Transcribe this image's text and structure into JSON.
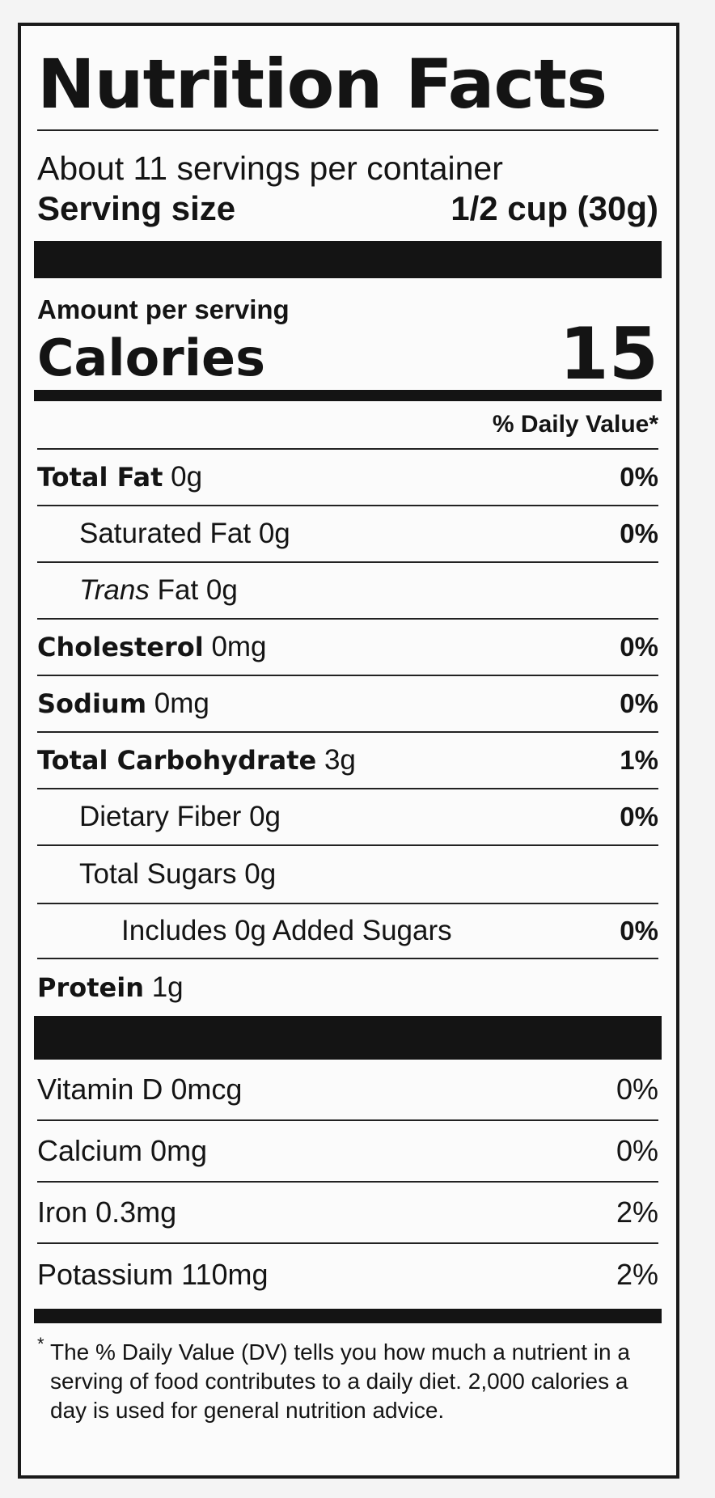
{
  "title": "Nutrition Facts",
  "servings_per_container": "About 11 servings per container",
  "serving_size": {
    "label": "Serving size",
    "value": "1/2 cup (30g)"
  },
  "amount_per_serving": "Amount per serving",
  "calories": {
    "label": "Calories",
    "value": "15"
  },
  "daily_value_header": "% Daily Value*",
  "nutrients": [
    {
      "name": "Total Fat",
      "amount": "0g",
      "dv": "0%"
    },
    {
      "name": "Saturated Fat",
      "amount": "0g",
      "dv": "0%"
    },
    {
      "name": "Trans",
      "name_rest": "Fat",
      "amount": "0g",
      "dv": ""
    },
    {
      "name": "Cholesterol",
      "amount": "0mg",
      "dv": "0%"
    },
    {
      "name": "Sodium",
      "amount": "0mg",
      "dv": "0%"
    },
    {
      "name": "Total Carbohydrate",
      "amount": "3g",
      "dv": "1%"
    },
    {
      "name": "Dietary Fiber",
      "amount": "0g",
      "dv": "0%"
    },
    {
      "name": "Total Sugars",
      "amount": "0g",
      "dv": ""
    },
    {
      "name": "Includes 0g Added Sugars",
      "amount": "",
      "dv": "0%"
    },
    {
      "name": "Protein",
      "amount": "1g",
      "dv": ""
    }
  ],
  "vitamins": [
    {
      "name": "Vitamin D",
      "amount": "0mcg",
      "dv": "0%"
    },
    {
      "name": "Calcium",
      "amount": "0mg",
      "dv": "0%"
    },
    {
      "name": "Iron",
      "amount": "0.3mg",
      "dv": "2%"
    },
    {
      "name": "Potassium",
      "amount": "110mg",
      "dv": "2%"
    }
  ],
  "footnote": {
    "star": "*",
    "text": "The % Daily Value (DV) tells you how much a nutrient in a serving of food contributes to a daily diet. 2,000 calories a day is used for general nutrition advice."
  }
}
